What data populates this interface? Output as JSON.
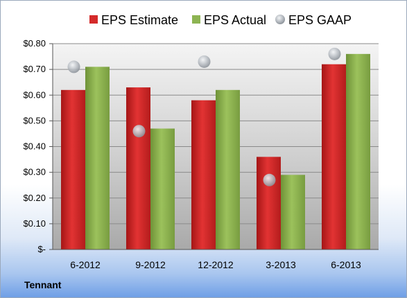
{
  "chart_data": {
    "type": "bar",
    "categories": [
      "6-2012",
      "9-2012",
      "12-2012",
      "3-2013",
      "6-2013"
    ],
    "series": [
      {
        "name": "EPS Estimate",
        "type": "bar",
        "values": [
          0.62,
          0.63,
          0.58,
          0.36,
          0.72
        ]
      },
      {
        "name": "EPS Actual",
        "type": "bar",
        "values": [
          0.71,
          0.47,
          0.62,
          0.29,
          0.76
        ]
      },
      {
        "name": "EPS GAAP",
        "type": "scatter",
        "values": [
          0.71,
          0.46,
          0.73,
          0.27,
          0.76
        ]
      }
    ],
    "ylim": [
      0,
      0.8
    ],
    "yticks": [
      0,
      0.1,
      0.2,
      0.3,
      0.4,
      0.5,
      0.6,
      0.7,
      0.8
    ],
    "ytick_labels": [
      "$-",
      "$0.10",
      "$0.20",
      "$0.30",
      "$0.40",
      "$0.50",
      "$0.60",
      "$0.70",
      "$0.80"
    ],
    "grid": true,
    "legend_position": "top",
    "colors": {
      "estimate": "#d42a2a",
      "actual": "#8db452",
      "gaap": "#b9bec4"
    }
  },
  "company_label": "Tennant"
}
